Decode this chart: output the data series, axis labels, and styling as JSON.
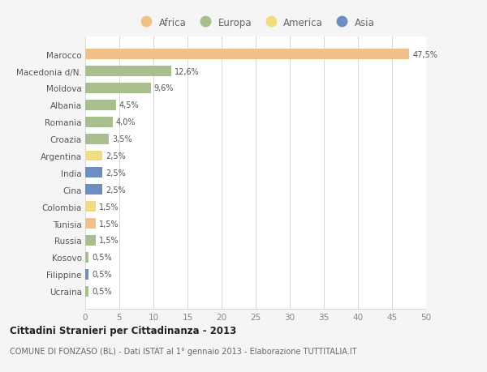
{
  "categories": [
    "Marocco",
    "Macedonia d/N.",
    "Moldova",
    "Albania",
    "Romania",
    "Croazia",
    "Argentina",
    "India",
    "Cina",
    "Colombia",
    "Tunisia",
    "Russia",
    "Kosovo",
    "Filippine",
    "Ucraina"
  ],
  "values": [
    47.5,
    12.6,
    9.6,
    4.5,
    4.0,
    3.5,
    2.5,
    2.5,
    2.5,
    1.5,
    1.5,
    1.5,
    0.5,
    0.5,
    0.5
  ],
  "labels": [
    "47,5%",
    "12,6%",
    "9,6%",
    "4,5%",
    "4,0%",
    "3,5%",
    "2,5%",
    "2,5%",
    "2,5%",
    "1,5%",
    "1,5%",
    "1,5%",
    "0,5%",
    "0,5%",
    "0,5%"
  ],
  "colors": [
    "#F2C18A",
    "#A8BE8C",
    "#A8BE8C",
    "#A8BE8C",
    "#A8BE8C",
    "#A8BE8C",
    "#F2DC82",
    "#6E8EC0",
    "#6E8EC0",
    "#F2DC82",
    "#F2C18A",
    "#A8BE8C",
    "#A8BE8C",
    "#6E8EC0",
    "#A8BE8C"
  ],
  "legend_labels": [
    "Africa",
    "Europa",
    "America",
    "Asia"
  ],
  "legend_colors": [
    "#F2C18A",
    "#A8BE8C",
    "#F2DC82",
    "#6E8EC0"
  ],
  "title": "Cittadini Stranieri per Cittadinanza - 2013",
  "subtitle": "COMUNE DI FONZASO (BL) - Dati ISTAT al 1° gennaio 2013 - Elaborazione TUTTITALIA.IT",
  "xlim": [
    0,
    50
  ],
  "xticks": [
    0,
    5,
    10,
    15,
    20,
    25,
    30,
    35,
    40,
    45,
    50
  ],
  "background_color": "#f5f5f5",
  "plot_bg_color": "#ffffff",
  "grid_color": "#d8d8d8",
  "label_color": "#555555",
  "tick_color": "#888888"
}
